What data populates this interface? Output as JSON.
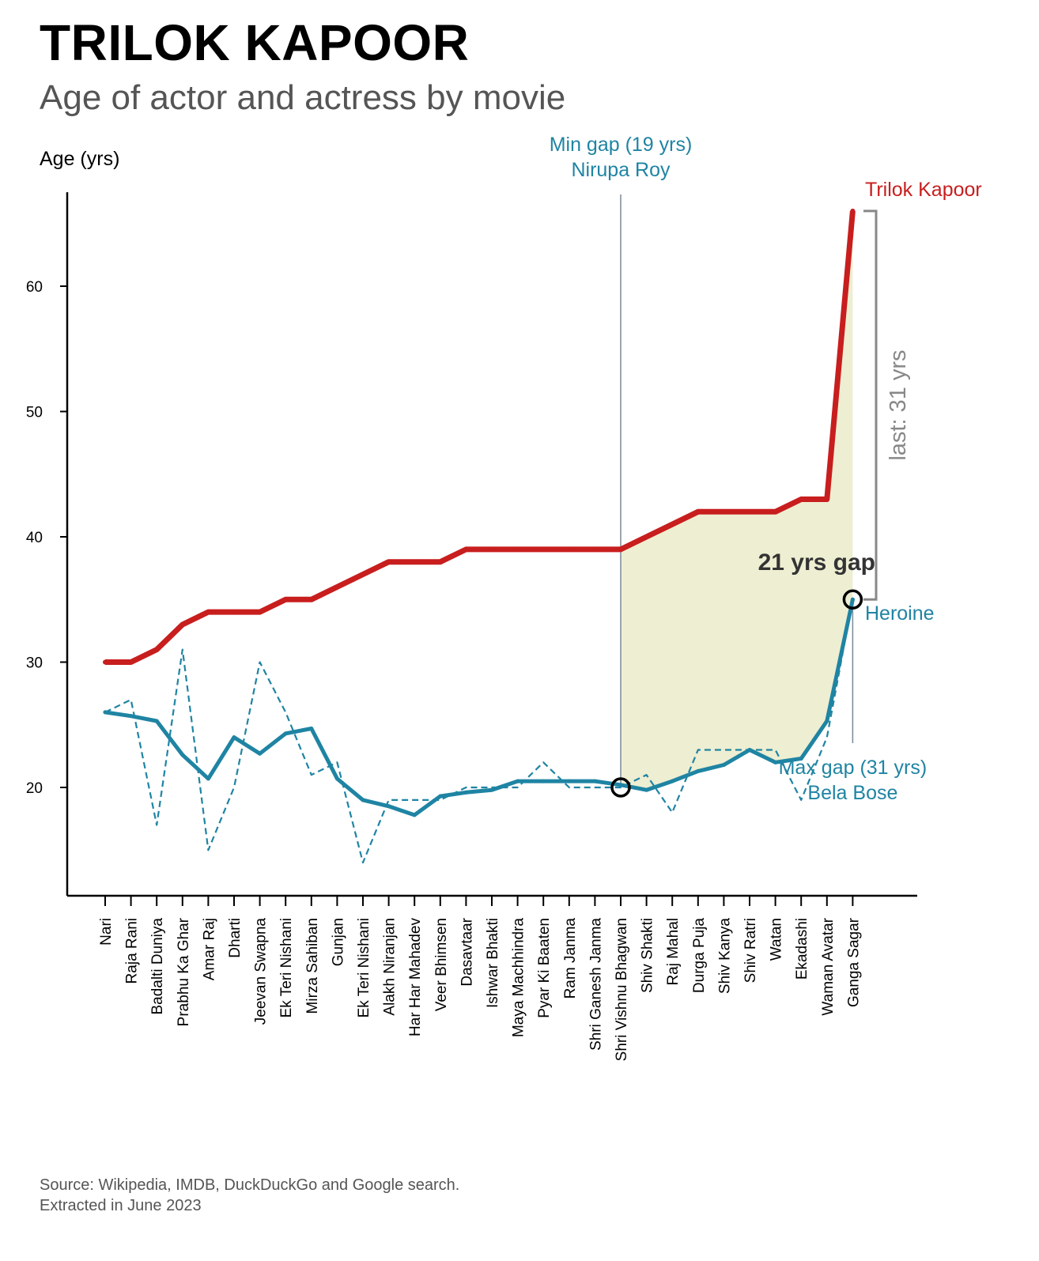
{
  "header": {
    "title": "TRILOK KAPOOR",
    "subtitle": "Age of actor and actress by movie"
  },
  "footer": {
    "line1": "Source: Wikipedia, IMDB, DuckDuckGo and Google search.",
    "line2": "Extracted in June 2023"
  },
  "colors": {
    "actor": "#c81e1e",
    "heroine": "#1f84a3",
    "gap_fill": "#eeeed2",
    "bracket": "#888888",
    "gap_line": "#7a8a99"
  },
  "chart_data": {
    "type": "line",
    "ylabel": "Age (yrs)",
    "xlabel": "",
    "ylim": [
      11.5,
      67.5
    ],
    "yticks": [
      20,
      30,
      40,
      50,
      60
    ],
    "grid": false,
    "categories": [
      "Nari",
      "Raja Rani",
      "Badalti Duniya",
      "Prabhu Ka Ghar",
      "Amar Raj",
      "Dharti",
      "Jeevan Swapna",
      "Ek Teri Nishani",
      "Mirza Sahiban",
      "Gunjan",
      "Ek Teri Nishani",
      "Alakh Niranjan",
      "Har Har Mahadev",
      "Veer Bhimsen",
      "Dasavtaar",
      "Ishwar Bhakti",
      "Maya Machhindra",
      "Pyar Ki Baaten",
      "Ram Janma",
      "Shri Ganesh Janma",
      "Shri Vishnu Bhagwan",
      "Shiv Shakti",
      "Raj Mahal",
      "Durga Puja",
      "Shiv Kanya",
      "Shiv Ratri",
      "Watan",
      "Ekadashi",
      "Waman Avatar",
      "Ganga Sagar"
    ],
    "series": [
      {
        "name": "Trilok Kapoor",
        "style": "solid-thick",
        "values": [
          30,
          30,
          31,
          33,
          34,
          34,
          34,
          35,
          35,
          36,
          37,
          38,
          38,
          38,
          39,
          39,
          39,
          39,
          39,
          39,
          39,
          40,
          41,
          42,
          42,
          42,
          42,
          43,
          43,
          66
        ]
      },
      {
        "name": "Heroine",
        "style": "solid-thick",
        "values": [
          26,
          25.7,
          25.3,
          22.6,
          20.7,
          24,
          22.7,
          24.3,
          24.7,
          20.7,
          19,
          18.5,
          17.8,
          19.3,
          19.6,
          19.8,
          20.5,
          20.5,
          20.5,
          20.5,
          20.2,
          19.8,
          20.5,
          21.3,
          21.8,
          23,
          22,
          22.3,
          25.3,
          35
        ]
      },
      {
        "style": "dashed-thin",
        "values": [
          26,
          27,
          17,
          31,
          15,
          20,
          30,
          26,
          21,
          22,
          14,
          19,
          19,
          19,
          20,
          20,
          20,
          22,
          20,
          20,
          20,
          21,
          18,
          23,
          23,
          23,
          23,
          19,
          24,
          35
        ]
      }
    ],
    "annotations": {
      "min_gap": {
        "label_line1": "Min gap (19 yrs)",
        "label_line2": "Nirupa Roy",
        "index": 20,
        "value": 20
      },
      "max_gap": {
        "label_line1": "Max gap (31 yrs)",
        "label_line2": "Bela Bose",
        "index": 29,
        "value": 35
      },
      "gap_label": "21 yrs gap",
      "bracket_label": "last: 31 yrs",
      "actor_label": "Trilok Kapoor",
      "heroine_label": "Heroine"
    }
  }
}
